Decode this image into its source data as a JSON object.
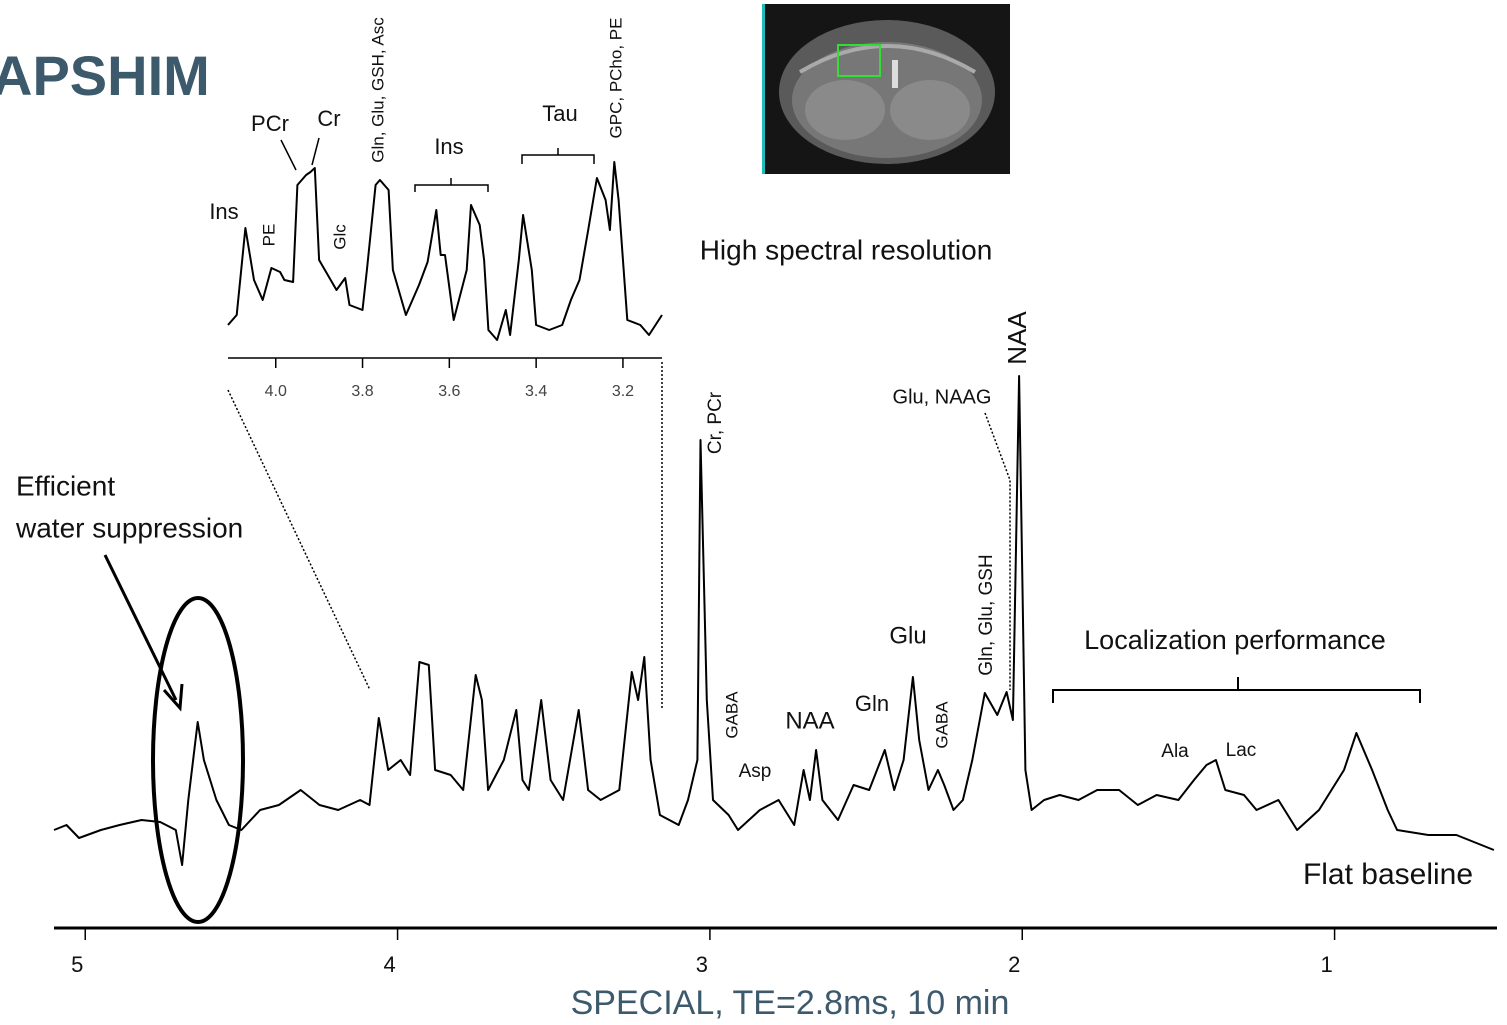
{
  "title": "APSHIM",
  "chart_data": [
    {
      "type": "line",
      "title": "High spectral resolution",
      "x": [
        4.11,
        4.09,
        4.07,
        4.05,
        4.03,
        4.01,
        3.99,
        3.98,
        3.96,
        3.95,
        3.93,
        3.92,
        3.91,
        3.9,
        3.88,
        3.86,
        3.84,
        3.83,
        3.8,
        3.79,
        3.77,
        3.76,
        3.74,
        3.73,
        3.7,
        3.67,
        3.65,
        3.63,
        3.62,
        3.61,
        3.59,
        3.56,
        3.55,
        3.53,
        3.52,
        3.51,
        3.49,
        3.47,
        3.46,
        3.44,
        3.43,
        3.41,
        3.4,
        3.37,
        3.34,
        3.32,
        3.3,
        3.28,
        3.26,
        3.24,
        3.23,
        3.22,
        3.21,
        3.19,
        3.16,
        3.14,
        3.11
      ],
      "series": [
        {
          "color": "#000000",
          "values": [
            10,
            15,
            58.5,
            32.5,
            22.5,
            38.5,
            36.5,
            32.5,
            31.5,
            80,
            85,
            86.5,
            88.5,
            42.5,
            35,
            27.5,
            33.5,
            20,
            17.5,
            37.5,
            80,
            82.5,
            77.5,
            37.5,
            15,
            30,
            41.5,
            67.5,
            45,
            45,
            12.5,
            37.5,
            70,
            60,
            42.5,
            7.5,
            2.5,
            17.5,
            5,
            42.5,
            65,
            37.5,
            10,
            7.5,
            10,
            22.5,
            32.5,
            57.5,
            83.5,
            72.5,
            57.5,
            91.5,
            72.5,
            12.5,
            10,
            5,
            15
          ]
        }
      ],
      "xlim": [
        4.11,
        3.11
      ],
      "xticks": [
        {
          "value": 4,
          "label": "4.0"
        },
        3.8,
        3.6,
        3.4,
        3.2
      ],
      "ylim": [
        0,
        95
      ],
      "annotations": [
        "Ins",
        "PE",
        "PCr",
        "Cr",
        "Glc",
        "Gln, Glu, GSH, Asc",
        "Ins",
        "Tau",
        "GPC, PCho, PE"
      ]
    },
    {
      "type": "line",
      "xlabel": "SPECIAL, TE=2.8ms, 10 min",
      "x": [
        5.1,
        5.06,
        5.02,
        4.95,
        4.89,
        4.82,
        4.76,
        4.71,
        4.69,
        4.67,
        4.64,
        4.62,
        4.58,
        4.54,
        4.5,
        4.44,
        4.38,
        4.31,
        4.25,
        4.19,
        4.12,
        4.09,
        4.06,
        4.03,
        3.99,
        3.96,
        3.93,
        3.9,
        3.88,
        3.83,
        3.79,
        3.75,
        3.73,
        3.71,
        3.66,
        3.62,
        3.6,
        3.58,
        3.54,
        3.51,
        3.47,
        3.42,
        3.39,
        3.35,
        3.29,
        3.25,
        3.23,
        3.21,
        3.19,
        3.16,
        3.1,
        3.07,
        3.04,
        3.03,
        3.01,
        2.99,
        2.94,
        2.91,
        2.84,
        2.78,
        2.73,
        2.7,
        2.68,
        2.66,
        2.64,
        2.59,
        2.54,
        2.49,
        2.44,
        2.41,
        2.38,
        2.35,
        2.33,
        2.3,
        2.27,
        2.25,
        2.22,
        2.19,
        2.16,
        2.12,
        2.08,
        2.05,
        2.03,
        2.01,
        1.99,
        1.97,
        1.93,
        1.88,
        1.82,
        1.76,
        1.69,
        1.63,
        1.57,
        1.5,
        1.45,
        1.41,
        1.38,
        1.35,
        1.29,
        1.25,
        1.18,
        1.12,
        1.05,
        0.97,
        0.93,
        0.88,
        0.83,
        0.8,
        0.7,
        0.61,
        0.49
      ],
      "series": [
        {
          "color": "#000000",
          "values": [
            19.6,
            20.6,
            18,
            19.6,
            20.6,
            21.6,
            21.2,
            19.6,
            12.6,
            25.6,
            41.2,
            33.6,
            25.6,
            20.6,
            19.6,
            23.6,
            24.6,
            27.6,
            24.6,
            23.6,
            25.6,
            24.6,
            42,
            31.6,
            33.6,
            30.6,
            53.2,
            52.6,
            31.6,
            30.6,
            27.6,
            50.6,
            45.6,
            27.6,
            33.6,
            43.6,
            29.6,
            27.6,
            45.6,
            29.6,
            25.6,
            43.6,
            27.6,
            25.6,
            27.6,
            51.2,
            45.6,
            54.2,
            33.6,
            22.6,
            20.6,
            25.6,
            33.6,
            97.6,
            45.6,
            25.6,
            22.6,
            19.6,
            23.6,
            25.6,
            20.6,
            31.6,
            25.6,
            35.6,
            25.6,
            21.6,
            28.6,
            27.6,
            35.6,
            27.6,
            33.6,
            50.2,
            37.6,
            27.6,
            31.6,
            28.6,
            23.6,
            25.6,
            33.6,
            47,
            42.6,
            47.2,
            41.6,
            110.4,
            31.6,
            23.6,
            25.6,
            26.6,
            25.6,
            27.6,
            27.6,
            24.6,
            26.6,
            25.6,
            29.6,
            32.6,
            33.6,
            27.6,
            26.6,
            23.6,
            25.6,
            19.6,
            23.6,
            31.6,
            39,
            31.6,
            23.6,
            19.6,
            18.6,
            18.6,
            15.6
          ]
        }
      ],
      "xlim": [
        5.1,
        0.48
      ],
      "xticks": [
        5,
        4,
        3,
        2,
        1
      ],
      "ylim": [
        0,
        112
      ],
      "annotations": [
        "Efficient",
        "water suppression",
        "Cr, PCr",
        "GABA",
        "Asp",
        "NAA",
        "Gln",
        "Glu",
        "GABA",
        "Gln, Glu, GSH",
        "Glu, NAAG",
        "NAA",
        "Localization performance",
        "Ala",
        "Lac",
        "Flat baseline"
      ]
    }
  ]
}
